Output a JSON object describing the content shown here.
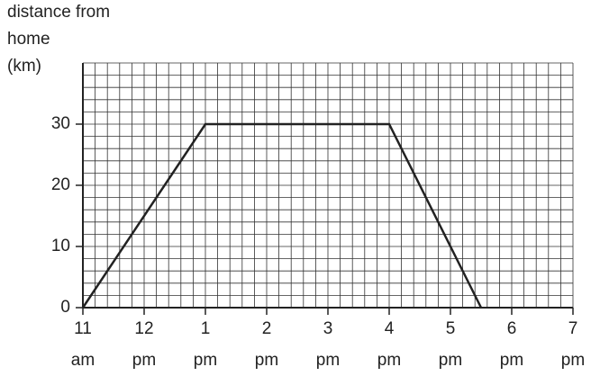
{
  "chart_data": {
    "type": "line",
    "ylabel": [
      "distance from",
      "home",
      "(km)"
    ],
    "x": [
      11,
      13,
      16,
      17.5
    ],
    "series": [
      {
        "color": "#222222",
        "values": [
          0,
          30,
          30,
          0
        ]
      }
    ],
    "xlim": [
      11,
      19
    ],
    "xticks": [
      {
        "value": 11,
        "label": "11 am"
      },
      {
        "value": 12,
        "label": "12 pm"
      },
      {
        "value": 13,
        "label": "1 pm"
      },
      {
        "value": 14,
        "label": "2 pm"
      },
      {
        "value": 15,
        "label": "3 pm"
      },
      {
        "value": 16,
        "label": "4 pm"
      },
      {
        "value": 17,
        "label": "5 pm"
      },
      {
        "value": 18,
        "label": "6 pm"
      },
      {
        "value": 19,
        "label": "7 pm"
      }
    ],
    "ylim": [
      0,
      40
    ],
    "yticks": [
      0,
      10,
      20,
      30
    ],
    "grid": true
  }
}
